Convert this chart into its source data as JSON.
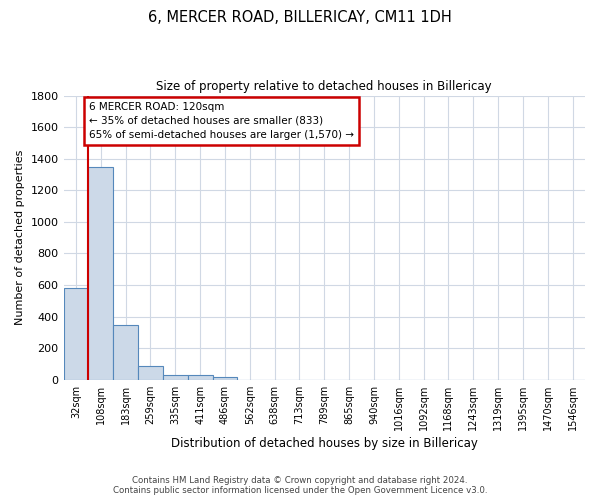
{
  "title": "6, MERCER ROAD, BILLERICAY, CM11 1DH",
  "subtitle": "Size of property relative to detached houses in Billericay",
  "xlabel": "Distribution of detached houses by size in Billericay",
  "ylabel": "Number of detached properties",
  "categories": [
    "32sqm",
    "108sqm",
    "183sqm",
    "259sqm",
    "335sqm",
    "411sqm",
    "486sqm",
    "562sqm",
    "638sqm",
    "713sqm",
    "789sqm",
    "865sqm",
    "940sqm",
    "1016sqm",
    "1092sqm",
    "1168sqm",
    "1243sqm",
    "1319sqm",
    "1395sqm",
    "1470sqm",
    "1546sqm"
  ],
  "values": [
    580,
    1350,
    350,
    90,
    30,
    28,
    18,
    0,
    0,
    0,
    0,
    0,
    0,
    0,
    0,
    0,
    0,
    0,
    0,
    0,
    0
  ],
  "bar_color": "#ccd9e8",
  "bar_edge_color": "#5588bb",
  "annotation_line1": "6 MERCER ROAD: 120sqm",
  "annotation_line2": "← 35% of detached houses are smaller (833)",
  "annotation_line3": "65% of semi-detached houses are larger (1,570) →",
  "vline_color": "#cc0000",
  "annotation_box_edgecolor": "#cc0000",
  "ylim": [
    0,
    1800
  ],
  "yticks": [
    0,
    200,
    400,
    600,
    800,
    1000,
    1200,
    1400,
    1600,
    1800
  ],
  "footer_line1": "Contains HM Land Registry data © Crown copyright and database right 2024.",
  "footer_line2": "Contains public sector information licensed under the Open Government Licence v3.0.",
  "background_color": "#ffffff",
  "grid_color": "#d0d8e4",
  "vline_x": 0.5
}
